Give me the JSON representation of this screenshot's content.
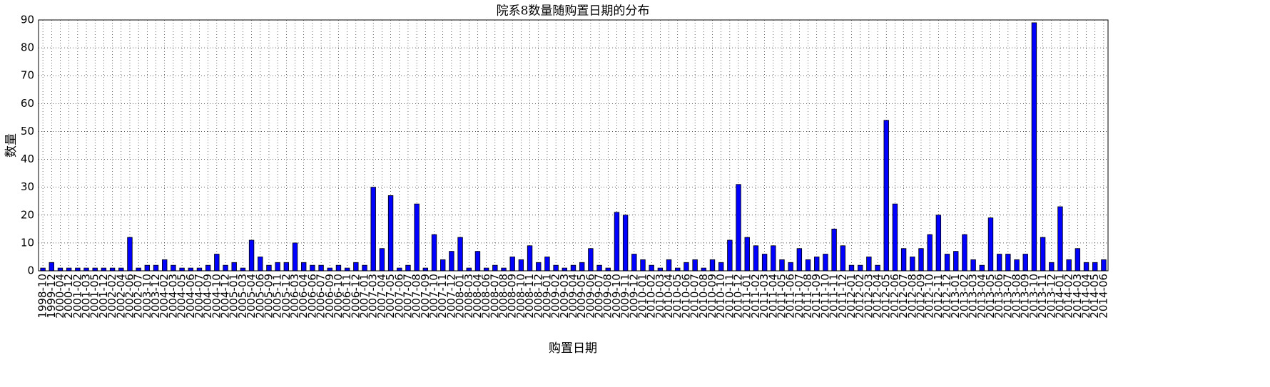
{
  "chart_data": {
    "type": "bar",
    "title": "院系8数量随购置日期的分布",
    "xlabel": "购置日期",
    "ylabel": "数量",
    "categories": [
      "1998-10",
      "1999-12",
      "2000-04",
      "2000-12",
      "2001-02",
      "2001-03",
      "2001-05",
      "2001-12",
      "2002-02",
      "2002-04",
      "2002-06",
      "2002-07",
      "2003-10",
      "2003-12",
      "2004-02",
      "2004-03",
      "2004-05",
      "2004-06",
      "2004-07",
      "2004-09",
      "2004-10",
      "2004-12",
      "2005-01",
      "2005-03",
      "2005-04",
      "2005-06",
      "2005-09",
      "2005-11",
      "2005-12",
      "2006-03",
      "2006-04",
      "2006-06",
      "2006-07",
      "2006-09",
      "2006-10",
      "2006-11",
      "2006-12",
      "2007-01",
      "2007-03",
      "2007-04",
      "2007-05",
      "2007-06",
      "2007-07",
      "2007-08",
      "2007-09",
      "2007-10",
      "2007-11",
      "2007-12",
      "2008-01",
      "2008-03",
      "2008-04",
      "2008-06",
      "2008-07",
      "2008-08",
      "2008-09",
      "2008-10",
      "2008-11",
      "2008-12",
      "2009-01",
      "2009-02",
      "2009-03",
      "2009-04",
      "2009-05",
      "2009-06",
      "2009-07",
      "2009-08",
      "2009-10",
      "2009-11",
      "2009-12",
      "2010-01",
      "2010-02",
      "2010-03",
      "2010-04",
      "2010-05",
      "2010-06",
      "2010-07",
      "2010-08",
      "2010-09",
      "2010-10",
      "2010-11",
      "2010-12",
      "2011-01",
      "2011-02",
      "2011-03",
      "2011-04",
      "2011-05",
      "2011-06",
      "2011-07",
      "2011-08",
      "2011-09",
      "2011-10",
      "2011-11",
      "2011-12",
      "2012-01",
      "2012-02",
      "2012-03",
      "2012-04",
      "2012-05",
      "2012-06",
      "2012-07",
      "2012-08",
      "2012-09",
      "2012-10",
      "2012-11",
      "2012-12",
      "2013-01",
      "2013-02",
      "2013-03",
      "2013-04",
      "2013-05",
      "2013-06",
      "2013-07",
      "2013-08",
      "2013-09",
      "2013-10",
      "2013-11",
      "2013-12",
      "2014-01",
      "2014-02",
      "2014-03",
      "2014-04",
      "2014-05",
      "2014-06"
    ],
    "values": [
      1,
      3,
      1,
      1,
      1,
      1,
      1,
      1,
      1,
      1,
      12,
      1,
      2,
      2,
      4,
      2,
      1,
      1,
      1,
      2,
      6,
      2,
      3,
      1,
      11,
      5,
      2,
      3,
      3,
      10,
      3,
      2,
      2,
      1,
      2,
      1,
      3,
      2,
      30,
      8,
      27,
      1,
      2,
      24,
      1,
      13,
      4,
      7,
      12,
      1,
      7,
      1,
      2,
      1,
      5,
      4,
      9,
      3,
      5,
      2,
      1,
      2,
      3,
      8,
      2,
      1,
      21,
      20,
      6,
      4,
      2,
      1,
      4,
      1,
      3,
      4,
      1,
      4,
      3,
      11,
      31,
      12,
      9,
      6,
      9,
      4,
      3,
      8,
      4,
      5,
      6,
      15,
      9,
      2,
      2,
      5,
      2,
      54,
      24,
      8,
      5,
      8,
      13,
      20,
      6,
      7,
      13,
      4,
      2,
      19,
      6,
      6,
      4,
      6,
      89,
      12,
      3,
      23,
      4,
      8,
      3,
      3,
      4
    ],
    "color": "#0000ff",
    "ylim": [
      0,
      90
    ],
    "yticks": [
      0,
      10,
      20,
      30,
      40,
      50,
      60,
      70,
      80,
      90
    ],
    "grid": true
  }
}
